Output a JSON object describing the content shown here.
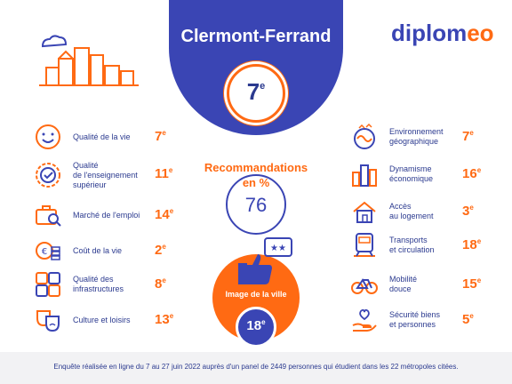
{
  "header": {
    "city": "Clermont-Ferrand",
    "overall_rank_num": "7",
    "overall_rank_suffix": "e"
  },
  "brand": {
    "logo_main": "diplom",
    "logo_accent": "eo"
  },
  "left_items": [
    {
      "icon": "smiley-icon",
      "label": "Qualité de la vie",
      "rank_num": "7",
      "suffix": "e"
    },
    {
      "icon": "quality-badge-icon",
      "label": "Qualité\nde l'enseignement\nsupérieur",
      "rank_num": "11",
      "suffix": "e"
    },
    {
      "icon": "briefcase-search-icon",
      "label": "Marché de l'emploi",
      "rank_num": "14",
      "suffix": "e"
    },
    {
      "icon": "coins-icon",
      "label": "Coût de la vie",
      "rank_num": "2",
      "suffix": "e"
    },
    {
      "icon": "infrastructure-icon",
      "label": "Qualité des\ninfrastructures",
      "rank_num": "8",
      "suffix": "e"
    },
    {
      "icon": "theatre-masks-icon",
      "label": "Culture et loisirs",
      "rank_num": "13",
      "suffix": "e"
    }
  ],
  "right_items": [
    {
      "icon": "globe-nature-icon",
      "label": "Environnement\ngéographique",
      "rank_num": "7",
      "suffix": "e"
    },
    {
      "icon": "city-growth-icon",
      "label": "Dynamisme\néconomique",
      "rank_num": "16",
      "suffix": "e"
    },
    {
      "icon": "house-icon",
      "label": "Accès\nau logement",
      "rank_num": "3",
      "suffix": "e"
    },
    {
      "icon": "train-icon",
      "label": "Transports\net circulation",
      "rank_num": "18",
      "suffix": "e"
    },
    {
      "icon": "bicycle-icon",
      "label": "Mobilité\ndouce",
      "rank_num": "15",
      "suffix": "e"
    },
    {
      "icon": "heart-hand-icon",
      "label": "Sécurité biens\net personnes",
      "rank_num": "5",
      "suffix": "e"
    }
  ],
  "recommendations": {
    "title": "Recommandations\nen %",
    "value": "76"
  },
  "city_image": {
    "label": "Image de la ville",
    "rank_num": "18",
    "suffix": "e"
  },
  "footer": "Enquête réalisée en ligne du 7 au 27 juin 2022 auprès d'un panel de 2449 personnes qui étudient dans les 22 métropoles citées.",
  "colors": {
    "primary": "#3a45b4",
    "accent": "#ff6a13",
    "text": "#2b3a8f",
    "footer_bg": "#f2f2f4"
  }
}
